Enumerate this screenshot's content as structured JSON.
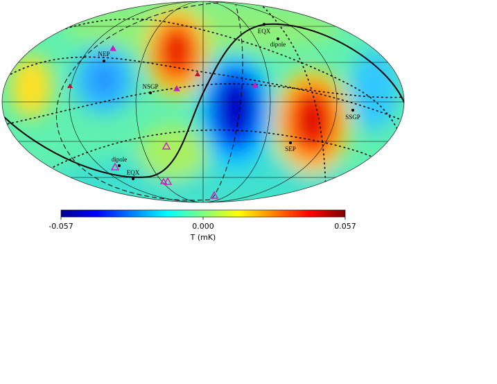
{
  "map_labels": [
    "EQX",
    "dipole",
    "NEP",
    "NSGP",
    "SSGP",
    "SEP",
    "dipole",
    "EQX"
  ],
  "colorbar": {
    "label": "T (mK)",
    "lim": [
      -0.057,
      0.057
    ],
    "ticks": [
      -0.057,
      {
        "value": 0,
        "label": "0.000"
      },
      0.057
    ]
  }
}
